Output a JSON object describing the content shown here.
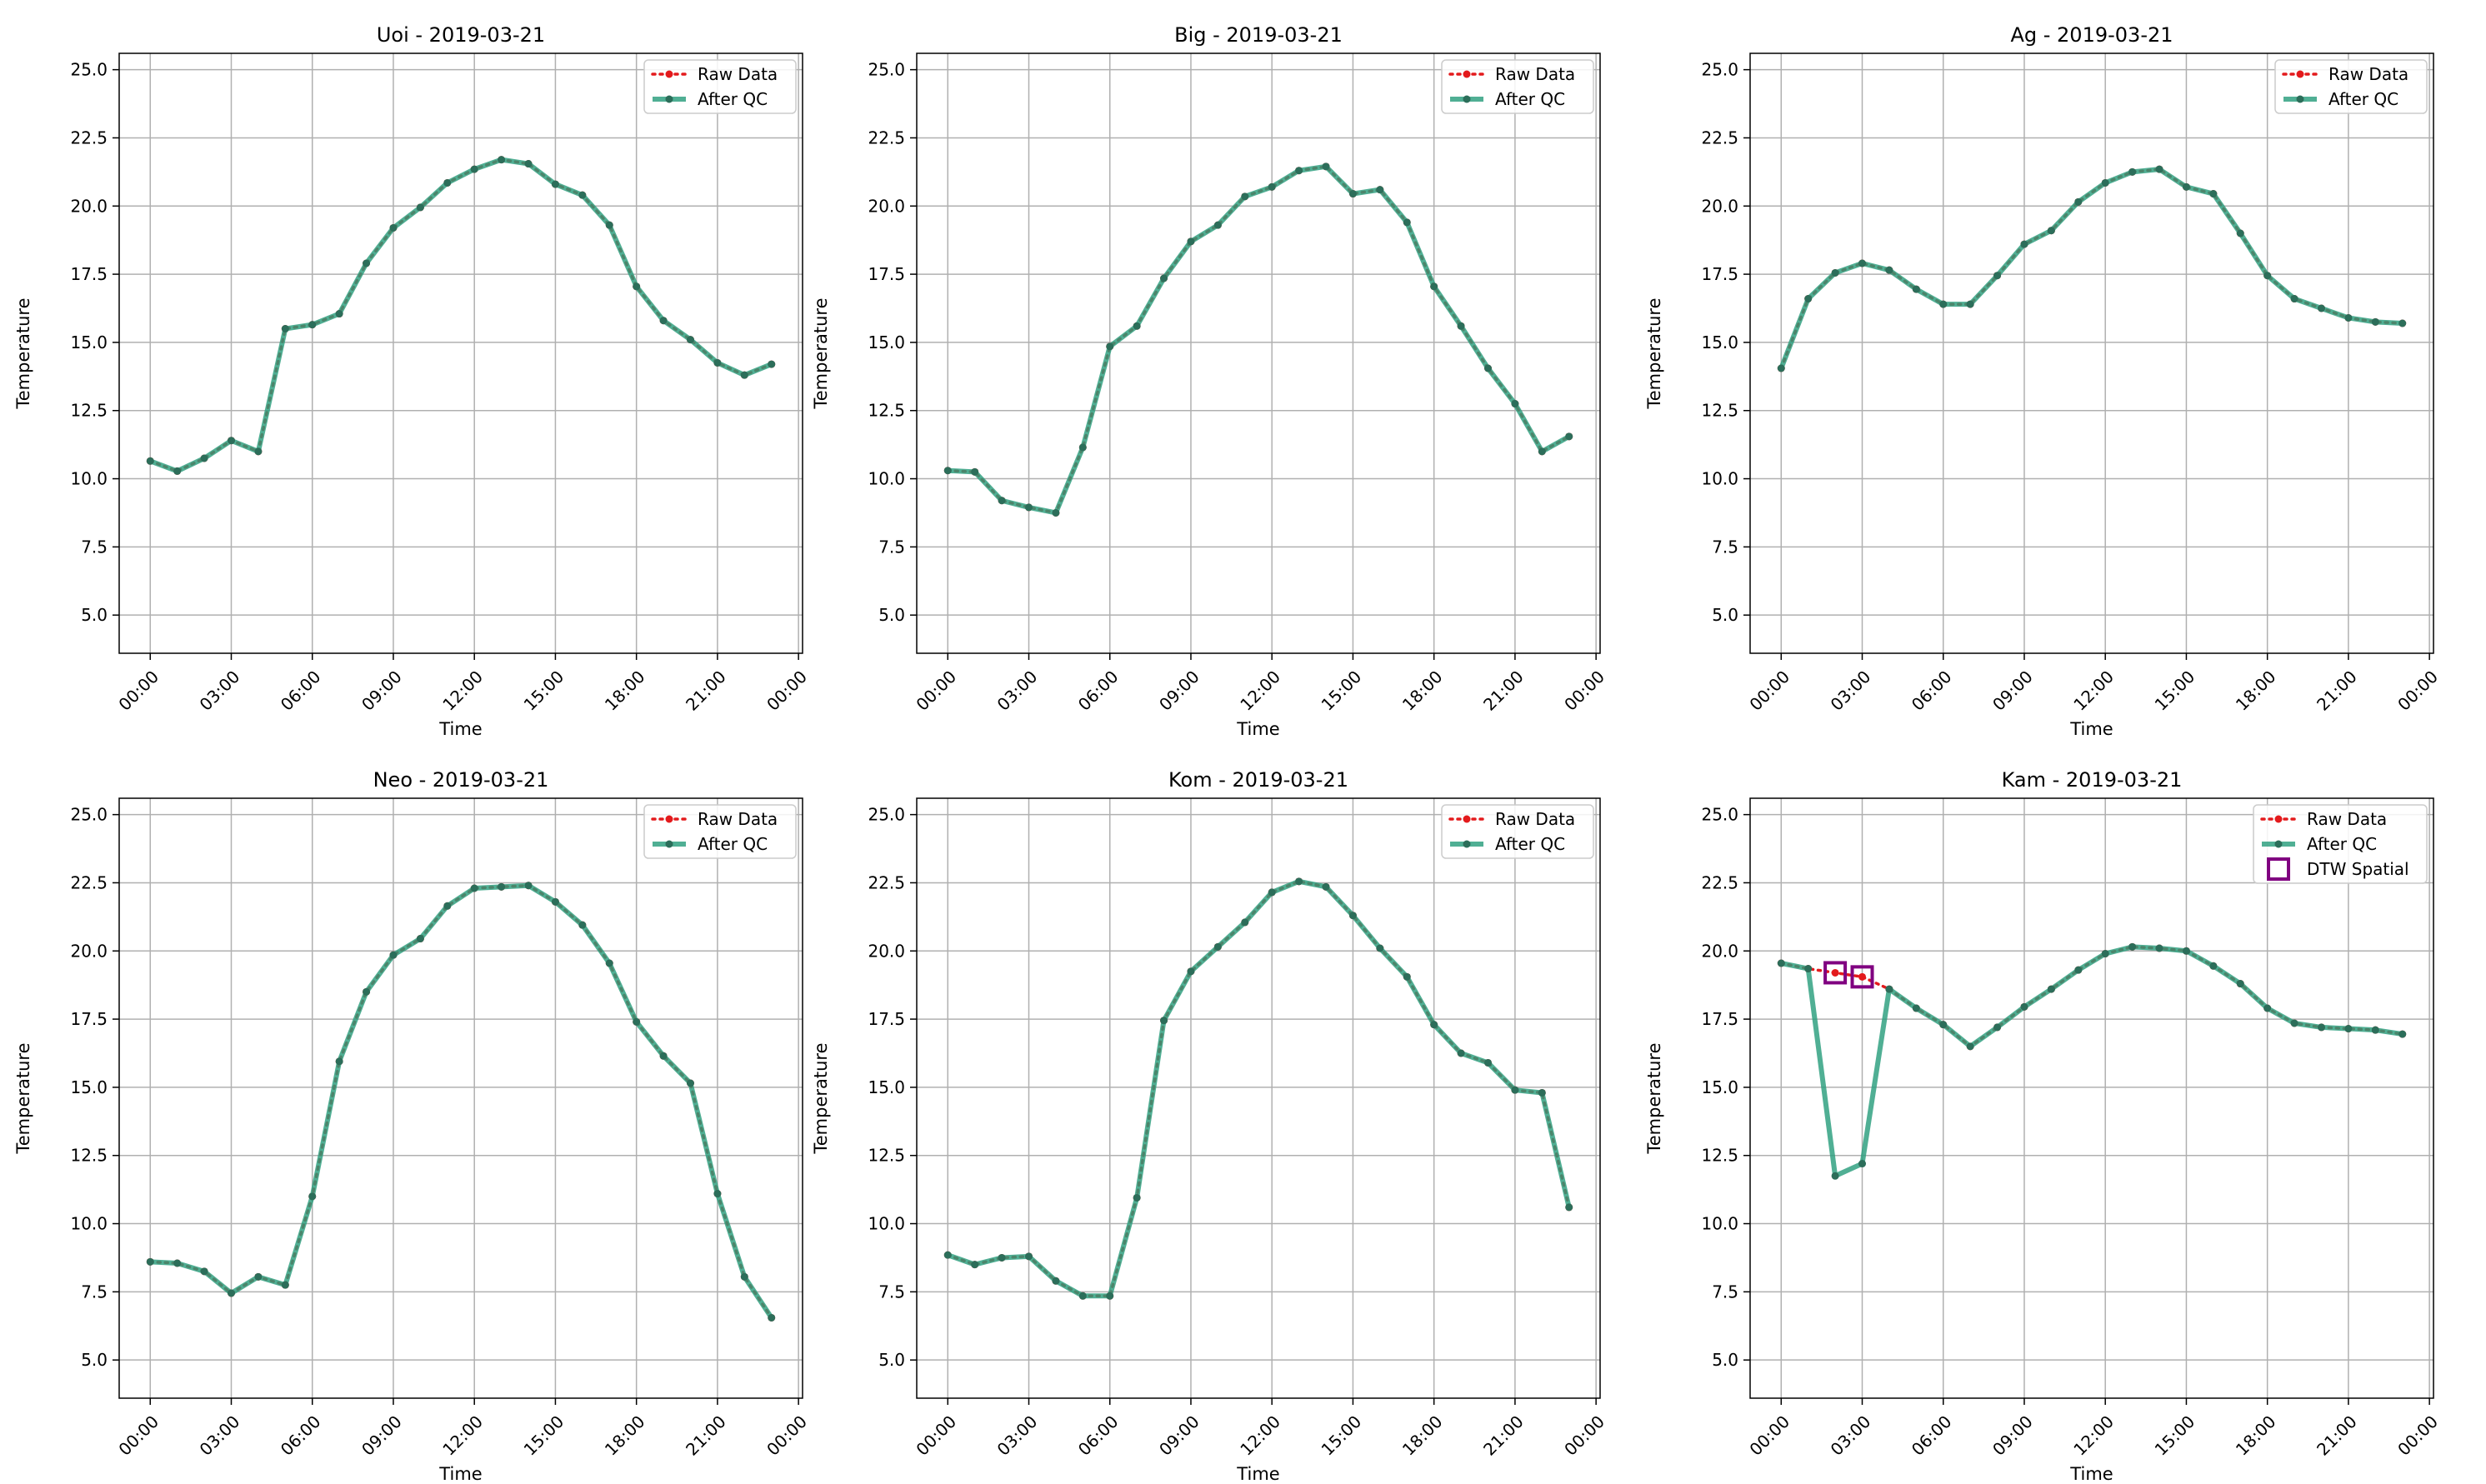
{
  "legend_labels": {
    "raw": "Raw Data",
    "qc": "After QC",
    "dtw": "DTW Spatial"
  },
  "colors": {
    "raw": "#e31a1c",
    "qc": "#2a9d7c",
    "qc_marker": "#2c6e5a",
    "dtw": "#800080",
    "grid": "#b0b0b0"
  },
  "chart_data": [
    {
      "type": "line",
      "title": "Uoi - 2019-03-21",
      "xlabel": "Time",
      "ylabel": "Temperature",
      "ylim": [
        3.6,
        25.6
      ],
      "xlim_hours": [
        -1.15,
        24.15
      ],
      "yticks": [
        5.0,
        7.5,
        10.0,
        12.5,
        15.0,
        17.5,
        20.0,
        22.5,
        25.0
      ],
      "xticks": [
        "00:00",
        "03:00",
        "06:00",
        "09:00",
        "12:00",
        "15:00",
        "18:00",
        "21:00",
        "00:00"
      ],
      "grid": true,
      "legend": "top-right",
      "x_hours": [
        0,
        1,
        2,
        3,
        4,
        5,
        6,
        7,
        8,
        9,
        10,
        11,
        12,
        13,
        14,
        15,
        16,
        17,
        18,
        19,
        20,
        21,
        22,
        23
      ],
      "series": [
        {
          "name": "Raw Data",
          "values": [
            10.65,
            10.28,
            10.75,
            11.4,
            11.0,
            15.5,
            15.65,
            16.05,
            17.9,
            19.2,
            19.95,
            20.85,
            21.35,
            21.7,
            21.55,
            20.8,
            20.4,
            19.3,
            17.05,
            15.8,
            15.1,
            14.25,
            13.8,
            14.2
          ]
        },
        {
          "name": "After QC",
          "values": [
            10.65,
            10.28,
            10.75,
            11.4,
            11.0,
            15.5,
            15.65,
            16.05,
            17.9,
            19.2,
            19.95,
            20.85,
            21.35,
            21.7,
            21.55,
            20.8,
            20.4,
            19.3,
            17.05,
            15.8,
            15.1,
            14.25,
            13.8,
            14.2
          ]
        }
      ],
      "flagged": []
    },
    {
      "type": "line",
      "title": "Big - 2019-03-21",
      "xlabel": "Time",
      "ylabel": "Temperature",
      "ylim": [
        3.6,
        25.6
      ],
      "xlim_hours": [
        -1.15,
        24.15
      ],
      "yticks": [
        5.0,
        7.5,
        10.0,
        12.5,
        15.0,
        17.5,
        20.0,
        22.5,
        25.0
      ],
      "xticks": [
        "00:00",
        "03:00",
        "06:00",
        "09:00",
        "12:00",
        "15:00",
        "18:00",
        "21:00",
        "00:00"
      ],
      "grid": true,
      "legend": "top-right",
      "x_hours": [
        0,
        1,
        2,
        3,
        4,
        5,
        6,
        7,
        8,
        9,
        10,
        11,
        12,
        13,
        14,
        15,
        16,
        17,
        18,
        19,
        20,
        21,
        22,
        23
      ],
      "series": [
        {
          "name": "Raw Data",
          "values": [
            10.3,
            10.25,
            9.2,
            8.95,
            8.75,
            11.15,
            14.85,
            15.6,
            17.35,
            18.7,
            19.3,
            20.35,
            20.7,
            21.3,
            21.45,
            20.45,
            20.6,
            19.4,
            17.05,
            15.6,
            14.05,
            12.75,
            11.0,
            11.55
          ]
        },
        {
          "name": "After QC",
          "values": [
            10.3,
            10.25,
            9.2,
            8.95,
            8.75,
            11.15,
            14.85,
            15.6,
            17.35,
            18.7,
            19.3,
            20.35,
            20.7,
            21.3,
            21.45,
            20.45,
            20.6,
            19.4,
            17.05,
            15.6,
            14.05,
            12.75,
            11.0,
            11.55
          ]
        }
      ],
      "flagged": []
    },
    {
      "type": "line",
      "title": "Ag - 2019-03-21",
      "xlabel": "Time",
      "ylabel": "Temperature",
      "ylim": [
        3.6,
        25.6
      ],
      "xlim_hours": [
        -1.15,
        24.15
      ],
      "yticks": [
        5.0,
        7.5,
        10.0,
        12.5,
        15.0,
        17.5,
        20.0,
        22.5,
        25.0
      ],
      "xticks": [
        "00:00",
        "03:00",
        "06:00",
        "09:00",
        "12:00",
        "15:00",
        "18:00",
        "21:00",
        "00:00"
      ],
      "grid": true,
      "legend": "top-right",
      "x_hours": [
        0,
        1,
        2,
        3,
        4,
        5,
        6,
        7,
        8,
        9,
        10,
        11,
        12,
        13,
        14,
        15,
        16,
        17,
        18,
        19,
        20,
        21,
        22,
        23
      ],
      "series": [
        {
          "name": "Raw Data",
          "values": [
            14.05,
            16.6,
            17.55,
            17.9,
            17.65,
            16.95,
            16.4,
            16.4,
            17.45,
            18.6,
            19.1,
            20.15,
            20.85,
            21.25,
            21.35,
            20.7,
            20.45,
            19.0,
            17.45,
            16.6,
            16.25,
            15.9,
            15.75,
            15.7
          ]
        },
        {
          "name": "After QC",
          "values": [
            14.05,
            16.6,
            17.55,
            17.9,
            17.65,
            16.95,
            16.4,
            16.4,
            17.45,
            18.6,
            19.1,
            20.15,
            20.85,
            21.25,
            21.35,
            20.7,
            20.45,
            19.0,
            17.45,
            16.6,
            16.25,
            15.9,
            15.75,
            15.7
          ]
        }
      ],
      "flagged": []
    },
    {
      "type": "line",
      "title": "Neo - 2019-03-21",
      "xlabel": "Time",
      "ylabel": "Temperature",
      "ylim": [
        3.6,
        25.6
      ],
      "xlim_hours": [
        -1.15,
        24.15
      ],
      "yticks": [
        5.0,
        7.5,
        10.0,
        12.5,
        15.0,
        17.5,
        20.0,
        22.5,
        25.0
      ],
      "xticks": [
        "00:00",
        "03:00",
        "06:00",
        "09:00",
        "12:00",
        "15:00",
        "18:00",
        "21:00",
        "00:00"
      ],
      "grid": true,
      "legend": "top-right",
      "x_hours": [
        0,
        1,
        2,
        3,
        4,
        5,
        6,
        7,
        8,
        9,
        10,
        11,
        12,
        13,
        14,
        15,
        16,
        17,
        18,
        19,
        20,
        21,
        22,
        23
      ],
      "series": [
        {
          "name": "Raw Data",
          "values": [
            8.6,
            8.55,
            8.25,
            7.45,
            8.05,
            7.75,
            11.0,
            15.95,
            18.5,
            19.85,
            20.45,
            21.65,
            22.3,
            22.35,
            22.4,
            21.8,
            20.95,
            19.55,
            17.4,
            16.15,
            15.15,
            11.1,
            8.05,
            6.55
          ]
        },
        {
          "name": "After QC",
          "values": [
            8.6,
            8.55,
            8.25,
            7.45,
            8.05,
            7.75,
            11.0,
            15.95,
            18.5,
            19.85,
            20.45,
            21.65,
            22.3,
            22.35,
            22.4,
            21.8,
            20.95,
            19.55,
            17.4,
            16.15,
            15.15,
            11.1,
            8.05,
            6.55
          ]
        }
      ],
      "flagged": []
    },
    {
      "type": "line",
      "title": "Kom - 2019-03-21",
      "xlabel": "Time",
      "ylabel": "Temperature",
      "ylim": [
        3.6,
        25.6
      ],
      "xlim_hours": [
        -1.15,
        24.15
      ],
      "yticks": [
        5.0,
        7.5,
        10.0,
        12.5,
        15.0,
        17.5,
        20.0,
        22.5,
        25.0
      ],
      "xticks": [
        "00:00",
        "03:00",
        "06:00",
        "09:00",
        "12:00",
        "15:00",
        "18:00",
        "21:00",
        "00:00"
      ],
      "grid": true,
      "legend": "top-right",
      "x_hours": [
        0,
        1,
        2,
        3,
        4,
        5,
        6,
        7,
        8,
        9,
        10,
        11,
        12,
        13,
        14,
        15,
        16,
        17,
        18,
        19,
        20,
        21,
        22,
        23
      ],
      "series": [
        {
          "name": "Raw Data",
          "values": [
            8.85,
            8.5,
            8.75,
            8.8,
            7.9,
            7.35,
            7.35,
            10.95,
            17.45,
            19.25,
            20.15,
            21.05,
            22.15,
            22.55,
            22.35,
            21.3,
            20.1,
            19.05,
            17.3,
            16.25,
            15.9,
            14.9,
            14.8,
            10.6
          ]
        },
        {
          "name": "After QC",
          "values": [
            8.85,
            8.5,
            8.75,
            8.8,
            7.9,
            7.35,
            7.35,
            10.95,
            17.45,
            19.25,
            20.15,
            21.05,
            22.15,
            22.55,
            22.35,
            21.3,
            20.1,
            19.05,
            17.3,
            16.25,
            15.9,
            14.9,
            14.8,
            10.6
          ]
        }
      ],
      "flagged": []
    },
    {
      "type": "line",
      "title": "Kam - 2019-03-21",
      "xlabel": "Time",
      "ylabel": "Temperature",
      "ylim": [
        3.6,
        25.6
      ],
      "xlim_hours": [
        -1.15,
        24.15
      ],
      "yticks": [
        5.0,
        7.5,
        10.0,
        12.5,
        15.0,
        17.5,
        20.0,
        22.5,
        25.0
      ],
      "xticks": [
        "00:00",
        "03:00",
        "06:00",
        "09:00",
        "12:00",
        "15:00",
        "18:00",
        "21:00",
        "00:00"
      ],
      "grid": true,
      "legend": "top-right",
      "x_hours": [
        0,
        1,
        2,
        3,
        4,
        5,
        6,
        7,
        8,
        9,
        10,
        11,
        12,
        13,
        14,
        15,
        16,
        17,
        18,
        19,
        20,
        21,
        22,
        23
      ],
      "series": [
        {
          "name": "Raw Data",
          "values": [
            19.55,
            19.35,
            19.2,
            19.05,
            18.6,
            17.9,
            17.3,
            16.5,
            17.2,
            17.95,
            18.6,
            19.3,
            19.9,
            20.15,
            20.1,
            20.0,
            19.45,
            18.8,
            17.9,
            17.35,
            17.2,
            17.15,
            17.1,
            16.95
          ]
        },
        {
          "name": "After QC",
          "values": [
            19.55,
            19.35,
            11.75,
            12.2,
            18.6,
            17.9,
            17.3,
            16.5,
            17.2,
            17.95,
            18.6,
            19.3,
            19.9,
            20.15,
            20.1,
            20.0,
            19.45,
            18.8,
            17.9,
            17.35,
            17.2,
            17.15,
            17.1,
            16.95
          ]
        }
      ],
      "flagged": [
        {
          "x_hour": 2,
          "value": 19.2
        },
        {
          "x_hour": 3,
          "value": 19.05
        }
      ]
    }
  ]
}
